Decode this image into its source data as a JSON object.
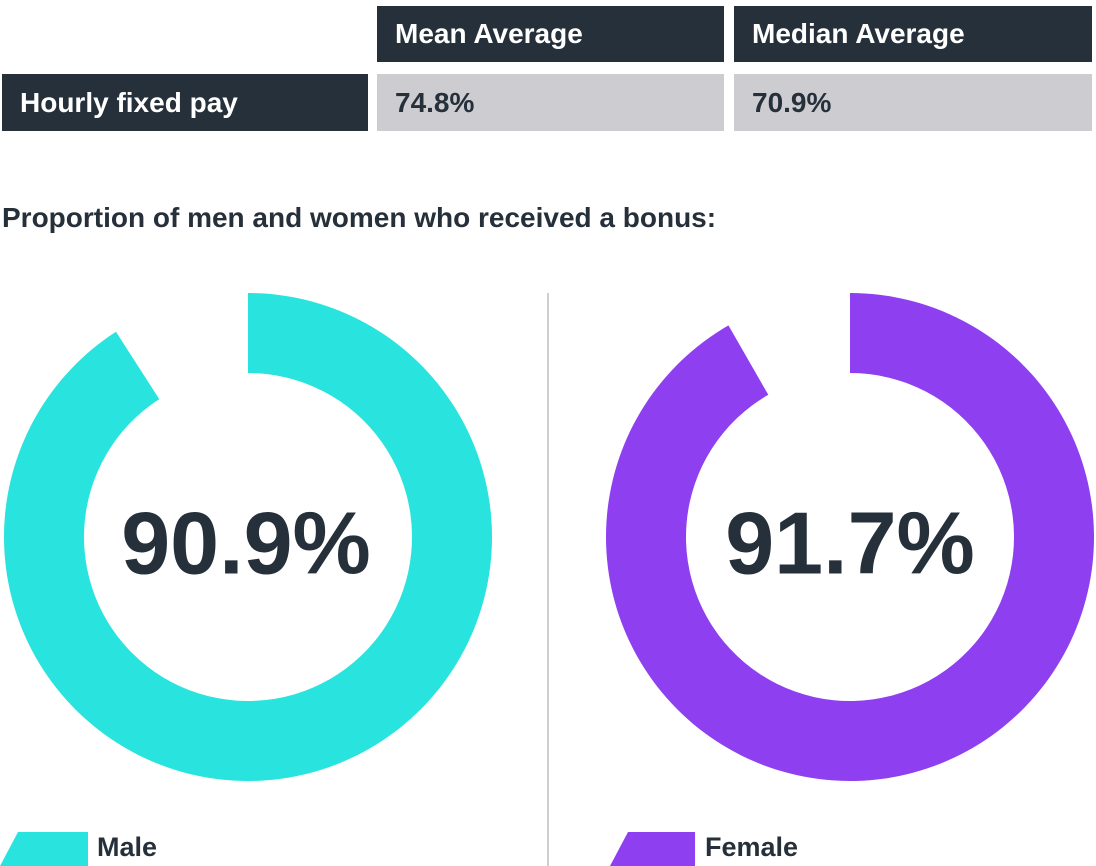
{
  "table": {
    "headers": [
      "Mean Average",
      "Median Average"
    ],
    "rows": [
      {
        "label": "Hourly fixed pay",
        "mean": "74.8%",
        "median": "70.9%"
      }
    ]
  },
  "section_title": "Proportion of men and women who received a bonus:",
  "chart_data": [
    {
      "type": "pie",
      "series": [
        {
          "name": "Male",
          "values": [
            90.9
          ]
        }
      ],
      "center_label": "90.9%",
      "color": "#29e3de"
    },
    {
      "type": "pie",
      "series": [
        {
          "name": "Female",
          "values": [
            91.7
          ]
        }
      ],
      "center_label": "91.7%",
      "color": "#8e3ff0"
    }
  ],
  "legend": [
    {
      "label": "Male",
      "color": "#29e3de"
    },
    {
      "label": "Female",
      "color": "#8e3ff0"
    }
  ],
  "colors": {
    "dark": "#26303a",
    "light": "#cdcdd1"
  }
}
